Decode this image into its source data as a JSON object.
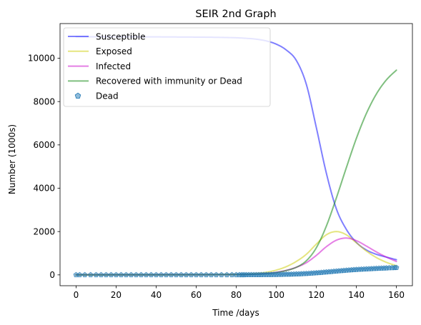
{
  "chart_data": {
    "type": "line",
    "title": "SEIR 2nd Graph",
    "xlabel": "Time /days",
    "ylabel": "Number (1000s)",
    "xlim": [
      -8,
      168
    ],
    "ylim": [
      -500,
      11600
    ],
    "xticks": [
      0,
      20,
      40,
      60,
      80,
      100,
      120,
      140,
      160
    ],
    "yticks": [
      0,
      2000,
      4000,
      6000,
      8000,
      10000
    ],
    "grid": false,
    "legend_position": "top-left",
    "x": [
      0,
      10,
      20,
      30,
      40,
      50,
      60,
      70,
      80,
      85,
      90,
      95,
      100,
      105,
      110,
      115,
      120,
      125,
      130,
      135,
      140,
      145,
      150,
      155,
      160
    ],
    "series": [
      {
        "name": "Susceptible",
        "style": "line",
        "color": "#0000ff",
        "values": [
          10990,
          10990,
          10990,
          10988,
          10985,
          10980,
          10975,
          10965,
          10945,
          10920,
          10880,
          10800,
          10650,
          10380,
          9900,
          8800,
          6800,
          4700,
          3050,
          2100,
          1500,
          1150,
          950,
          820,
          700
        ]
      },
      {
        "name": "Exposed",
        "style": "line",
        "color": "#cccc00",
        "values": [
          5,
          5,
          5,
          6,
          8,
          10,
          12,
          16,
          28,
          40,
          70,
          120,
          220,
          380,
          620,
          950,
          1420,
          1850,
          2000,
          1850,
          1480,
          1100,
          800,
          580,
          420
        ]
      },
      {
        "name": "Infected",
        "style": "line",
        "color": "#cc00cc",
        "values": [
          2,
          3,
          3,
          4,
          5,
          6,
          8,
          10,
          16,
          22,
          38,
          70,
          120,
          210,
          350,
          560,
          900,
          1300,
          1600,
          1700,
          1580,
          1330,
          1060,
          820,
          620
        ]
      },
      {
        "name": "Recovered with immunity or Dead",
        "style": "line",
        "color": "#008000",
        "values": [
          0,
          0,
          1,
          2,
          3,
          4,
          6,
          9,
          12,
          18,
          30,
          55,
          110,
          200,
          350,
          650,
          1250,
          2250,
          3550,
          4950,
          6300,
          7450,
          8350,
          9000,
          9450
        ]
      },
      {
        "name": "Dead",
        "style": "marker",
        "color": "#1f77b4",
        "values": [
          0,
          0,
          0,
          0,
          0,
          1,
          1,
          1,
          2,
          3,
          5,
          8,
          14,
          24,
          38,
          60,
          90,
          130,
          170,
          210,
          245,
          270,
          295,
          315,
          335
        ]
      }
    ]
  }
}
